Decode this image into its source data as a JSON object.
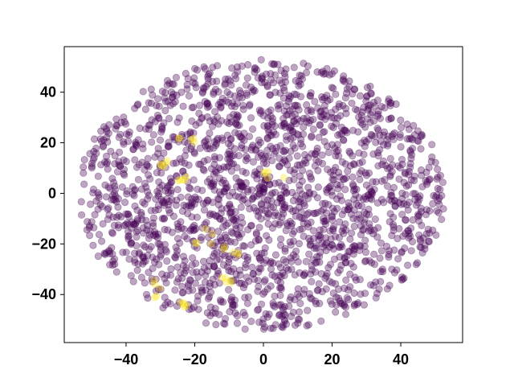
{
  "chart_data": {
    "type": "scatter",
    "title": "",
    "xlabel": "",
    "ylabel": "",
    "xlim": [
      -58,
      58
    ],
    "ylim": [
      -59,
      58
    ],
    "xticks": [
      -40,
      -20,
      0,
      20,
      40
    ],
    "yticks": [
      -40,
      -20,
      0,
      20,
      40
    ],
    "xtick_labels": [
      "−40",
      "−20",
      "0",
      "20",
      "40"
    ],
    "ytick_labels": [
      "−40",
      "−20",
      "0",
      "20",
      "40"
    ],
    "grid": false,
    "legend": "none",
    "point_alpha": 0.35,
    "point_count_purple_approx": 2000,
    "point_count_yellow_approx": 45,
    "series": [
      {
        "color": "#440154",
        "distribution": "roughly elliptical cloud",
        "x_extent": [
          -54,
          53
        ],
        "y_extent": [
          -54,
          53
        ]
      },
      {
        "color": "#fde725",
        "clusters": [
          {
            "x": [
              -26,
              -20
            ],
            "y": [
              19,
              23
            ]
          },
          {
            "x": [
              -31,
              -28
            ],
            "y": [
              10,
              13
            ]
          },
          {
            "x": [
              -26,
              -22
            ],
            "y": [
              4,
              7
            ]
          },
          {
            "x": [
              -1,
              10
            ],
            "y": [
              6,
              9
            ]
          },
          {
            "x": [
              -20,
              -14
            ],
            "y": [
              -20,
              -14
            ]
          },
          {
            "x": [
              -12,
              -6
            ],
            "y": [
              -25,
              -21
            ]
          },
          {
            "x": [
              -13,
              -8
            ],
            "y": [
              -36,
              -33
            ]
          },
          {
            "x": [
              -33,
              -30
            ],
            "y": [
              -42,
              -33
            ]
          },
          {
            "x": [
              -24,
              -22
            ],
            "y": [
              -46,
              -43
            ]
          }
        ]
      }
    ]
  }
}
